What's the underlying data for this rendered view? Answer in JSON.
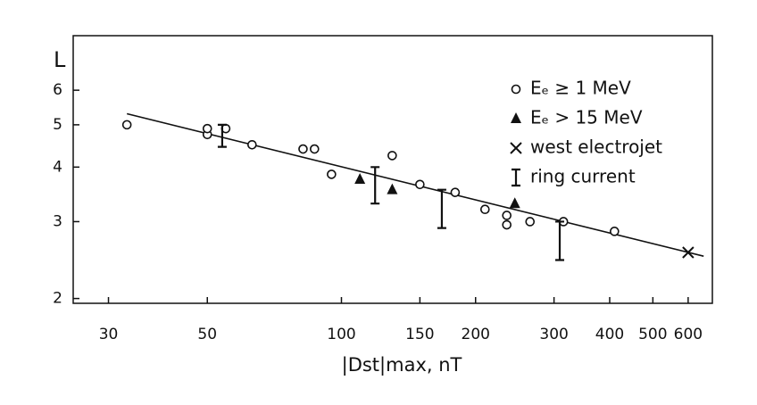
{
  "chart_data": {
    "type": "scatter",
    "x_label": "|Dst|max, nT",
    "y_label": "L",
    "log_x": true,
    "log_y": true,
    "xlim": [
      25,
      680
    ],
    "ylim": [
      1.95,
      8
    ],
    "xticks": [
      30,
      50,
      100,
      150,
      200,
      300,
      400,
      500,
      600
    ],
    "yticks": [
      2,
      3,
      4,
      5,
      6
    ],
    "color": "#111111",
    "legend": "upper right",
    "series": [
      {
        "name": "Eₑ ≥ 1 MeV",
        "marker": "circle",
        "x": [
          33,
          50,
          50,
          55,
          63,
          82,
          87,
          95,
          130,
          150,
          180,
          210,
          235,
          235,
          265,
          315,
          410
        ],
        "values": [
          5.0,
          4.75,
          4.9,
          4.9,
          4.5,
          4.4,
          4.4,
          3.85,
          4.25,
          3.65,
          3.5,
          3.2,
          3.1,
          2.95,
          3.0,
          3.0,
          2.85
        ]
      },
      {
        "name": "Eₑ > 15 MeV",
        "marker": "triangle",
        "x": [
          110,
          130,
          245
        ],
        "values": [
          3.75,
          3.55,
          3.3
        ]
      },
      {
        "name": "west electrojet",
        "marker": "cross",
        "x": [
          600
        ],
        "values": [
          2.55
        ]
      },
      {
        "name": "ring current",
        "marker": "range",
        "x": [
          54,
          119,
          168,
          309
        ],
        "ranges": [
          [
            4.45,
            5.0
          ],
          [
            3.3,
            4.0
          ],
          [
            2.9,
            3.55
          ],
          [
            2.45,
            3.0
          ]
        ]
      }
    ],
    "fit_line": {
      "x": [
        33,
        650
      ],
      "values": [
        5.3,
        2.5
      ]
    }
  }
}
